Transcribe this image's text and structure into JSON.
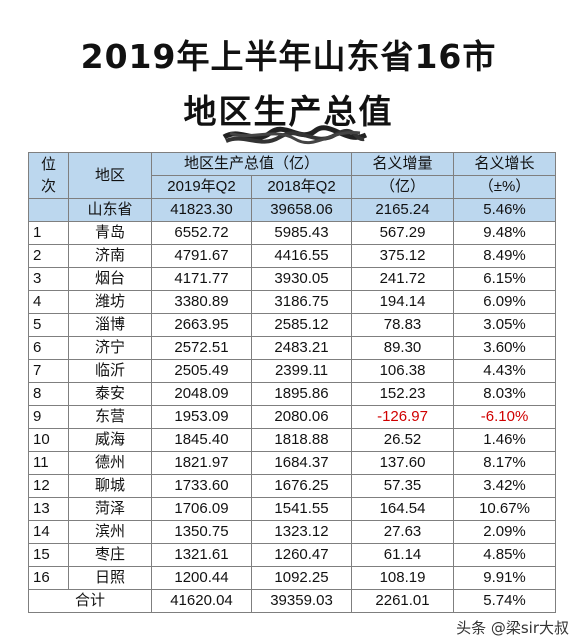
{
  "title_line1": "2019年上半年山东省16市",
  "title_line2": "地区生产总值",
  "header": {
    "rank_top": "位",
    "rank_bottom": "次",
    "region": "地区",
    "gdp_group": "地区生产总值（亿）",
    "col_2019": "2019年Q2",
    "col_2018": "2018年Q2",
    "increase_top": "名义增量",
    "increase_bottom": "（亿）",
    "growth_top": "名义增长",
    "growth_bottom": "（±%）"
  },
  "province": {
    "name": "山东省",
    "gdp_2019": "41823.30",
    "gdp_2018": "39658.06",
    "increase": "2165.24",
    "growth": "5.46%"
  },
  "rows": [
    {
      "rank": "1",
      "name": "青岛",
      "gdp_2019": "6552.72",
      "gdp_2018": "5985.43",
      "increase": "567.29",
      "growth": "9.48%"
    },
    {
      "rank": "2",
      "name": "济南",
      "gdp_2019": "4791.67",
      "gdp_2018": "4416.55",
      "increase": "375.12",
      "growth": "8.49%"
    },
    {
      "rank": "3",
      "name": "烟台",
      "gdp_2019": "4171.77",
      "gdp_2018": "3930.05",
      "increase": "241.72",
      "growth": "6.15%"
    },
    {
      "rank": "4",
      "name": "潍坊",
      "gdp_2019": "3380.89",
      "gdp_2018": "3186.75",
      "increase": "194.14",
      "growth": "6.09%"
    },
    {
      "rank": "5",
      "name": "淄博",
      "gdp_2019": "2663.95",
      "gdp_2018": "2585.12",
      "increase": "78.83",
      "growth": "3.05%"
    },
    {
      "rank": "6",
      "name": "济宁",
      "gdp_2019": "2572.51",
      "gdp_2018": "2483.21",
      "increase": "89.30",
      "growth": "3.60%"
    },
    {
      "rank": "7",
      "name": "临沂",
      "gdp_2019": "2505.49",
      "gdp_2018": "2399.11",
      "increase": "106.38",
      "growth": "4.43%"
    },
    {
      "rank": "8",
      "name": "泰安",
      "gdp_2019": "2048.09",
      "gdp_2018": "1895.86",
      "increase": "152.23",
      "growth": "8.03%"
    },
    {
      "rank": "9",
      "name": "东营",
      "gdp_2019": "1953.09",
      "gdp_2018": "2080.06",
      "increase": "-126.97",
      "growth": "-6.10%",
      "negative": true
    },
    {
      "rank": "10",
      "name": "威海",
      "gdp_2019": "1845.40",
      "gdp_2018": "1818.88",
      "increase": "26.52",
      "growth": "1.46%"
    },
    {
      "rank": "11",
      "name": "德州",
      "gdp_2019": "1821.97",
      "gdp_2018": "1684.37",
      "increase": "137.60",
      "growth": "8.17%"
    },
    {
      "rank": "12",
      "name": "聊城",
      "gdp_2019": "1733.60",
      "gdp_2018": "1676.25",
      "increase": "57.35",
      "growth": "3.42%"
    },
    {
      "rank": "13",
      "name": "菏泽",
      "gdp_2019": "1706.09",
      "gdp_2018": "1541.55",
      "increase": "164.54",
      "growth": "10.67%"
    },
    {
      "rank": "14",
      "name": "滨州",
      "gdp_2019": "1350.75",
      "gdp_2018": "1323.12",
      "increase": "27.63",
      "growth": "2.09%"
    },
    {
      "rank": "15",
      "name": "枣庄",
      "gdp_2019": "1321.61",
      "gdp_2018": "1260.47",
      "increase": "61.14",
      "growth": "4.85%"
    },
    {
      "rank": "16",
      "name": "日照",
      "gdp_2019": "1200.44",
      "gdp_2018": "1092.25",
      "increase": "108.19",
      "growth": "9.91%"
    }
  ],
  "total": {
    "label": "合计",
    "gdp_2019": "41620.04",
    "gdp_2018": "39359.03",
    "increase": "2261.01",
    "growth": "5.74%"
  },
  "watermark": "头条 @梁sir大叔"
}
